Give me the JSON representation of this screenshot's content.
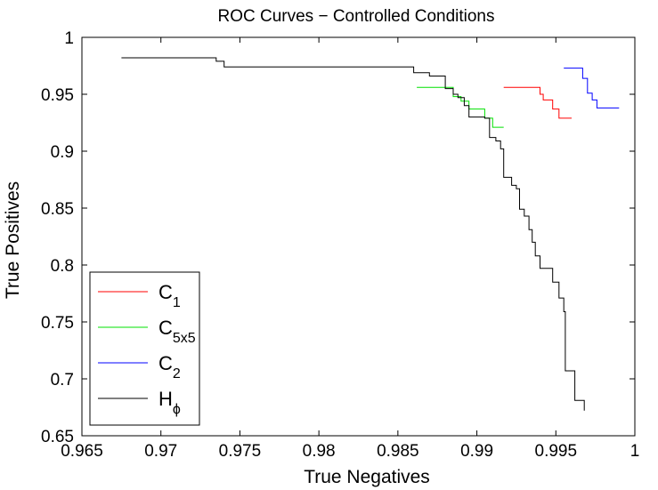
{
  "chart_data": {
    "type": "line",
    "title": "ROC Curves − Controlled Conditions",
    "xlabel": "True Negatives",
    "ylabel": "True Positives",
    "xlim": [
      0.965,
      1.0
    ],
    "ylim": [
      0.65,
      1.0
    ],
    "xticks": [
      "0.965",
      "0.97",
      "0.975",
      "0.98",
      "0.985",
      "0.99",
      "0.995",
      "1"
    ],
    "yticks": [
      "0.65",
      "0.7",
      "0.75",
      "0.8",
      "0.85",
      "0.9",
      "0.95",
      "1"
    ],
    "grid": false,
    "legend_position": "bottom-left",
    "series": [
      {
        "key": "c1",
        "base": "C",
        "sub": "1",
        "color": "#ff0000",
        "x": [
          0.9917,
          0.994,
          0.994,
          0.9942,
          0.9942,
          0.9948,
          0.9948,
          0.9952,
          0.9952,
          0.996
        ],
        "y": [
          0.956,
          0.956,
          0.95,
          0.95,
          0.945,
          0.945,
          0.937,
          0.937,
          0.929,
          0.929
        ]
      },
      {
        "key": "c5x5",
        "base": "C",
        "sub": "5x5",
        "color": "#00e000",
        "x": [
          0.9862,
          0.9885,
          0.9885,
          0.989,
          0.989,
          0.9895,
          0.9895,
          0.9905,
          0.9905,
          0.991,
          0.991,
          0.9917
        ],
        "y": [
          0.956,
          0.956,
          0.948,
          0.948,
          0.944,
          0.944,
          0.937,
          0.937,
          0.929,
          0.929,
          0.921,
          0.921
        ]
      },
      {
        "key": "c2",
        "base": "C",
        "sub": "2",
        "color": "#0000ff",
        "x": [
          0.9955,
          0.9967,
          0.9967,
          0.997,
          0.997,
          0.9973,
          0.9973,
          0.9976,
          0.9976,
          0.999
        ],
        "y": [
          0.973,
          0.973,
          0.964,
          0.964,
          0.951,
          0.951,
          0.945,
          0.945,
          0.938,
          0.938
        ]
      },
      {
        "key": "hphi",
        "base": "H",
        "sub": "ϕ",
        "color": "#000000",
        "x": [
          0.9675,
          0.9735,
          0.9735,
          0.974,
          0.974,
          0.986,
          0.986,
          0.987,
          0.987,
          0.988,
          0.988,
          0.9885,
          0.9885,
          0.9888,
          0.9888,
          0.9892,
          0.9892,
          0.9895,
          0.9895,
          0.9905,
          0.9905,
          0.9908,
          0.9908,
          0.9912,
          0.9912,
          0.9915,
          0.9915,
          0.9917,
          0.9917,
          0.9922,
          0.9922,
          0.9925,
          0.9925,
          0.9927,
          0.9927,
          0.993,
          0.993,
          0.9933,
          0.9933,
          0.9935,
          0.9935,
          0.9937,
          0.9937,
          0.994,
          0.994,
          0.9948,
          0.9948,
          0.9952,
          0.9952,
          0.9955,
          0.9955,
          0.9956,
          0.9956,
          0.9962,
          0.9962,
          0.9968,
          0.9968
        ],
        "y": [
          0.982,
          0.982,
          0.979,
          0.979,
          0.974,
          0.974,
          0.969,
          0.969,
          0.966,
          0.966,
          0.955,
          0.955,
          0.95,
          0.95,
          0.947,
          0.947,
          0.94,
          0.94,
          0.93,
          0.93,
          0.929,
          0.929,
          0.912,
          0.912,
          0.909,
          0.909,
          0.902,
          0.902,
          0.877,
          0.877,
          0.87,
          0.87,
          0.867,
          0.867,
          0.849,
          0.849,
          0.843,
          0.843,
          0.831,
          0.831,
          0.82,
          0.82,
          0.808,
          0.808,
          0.797,
          0.797,
          0.785,
          0.785,
          0.771,
          0.771,
          0.759,
          0.759,
          0.707,
          0.707,
          0.681,
          0.681,
          0.672
        ]
      }
    ]
  }
}
